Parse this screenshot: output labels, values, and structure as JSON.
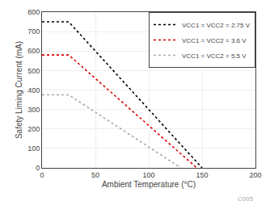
{
  "chart_data": {
    "type": "line",
    "xlabel": "Ambient Temperature (°C)",
    "ylabel": "Safety Liming Current (mA)",
    "xlim": [
      0,
      200
    ],
    "ylim": [
      0,
      800
    ],
    "xticks": [
      0,
      50,
      100,
      150,
      200
    ],
    "yticks": [
      0,
      100,
      200,
      300,
      400,
      500,
      600,
      700,
      800
    ],
    "series": [
      {
        "name": "VCC1 = VCC2 = 2.75 V",
        "color": "#000000",
        "line_style": "dotted",
        "x": [
          0,
          25,
          150
        ],
        "values": [
          750,
          750,
          0
        ]
      },
      {
        "name": "VCC1 = VCC2 = 3.6 V",
        "color": "#dd0000",
        "line_style": "dotted",
        "x": [
          0,
          25,
          145
        ],
        "values": [
          580,
          580,
          0
        ]
      },
      {
        "name": "VCC1 = VCC2 = 5.5 V",
        "color": "#aaaaaa",
        "line_style": "dotted",
        "x": [
          0,
          25,
          130
        ],
        "values": [
          375,
          375,
          0
        ]
      }
    ],
    "annotations": [
      "C005"
    ],
    "grid": true,
    "legend": "upper right"
  }
}
